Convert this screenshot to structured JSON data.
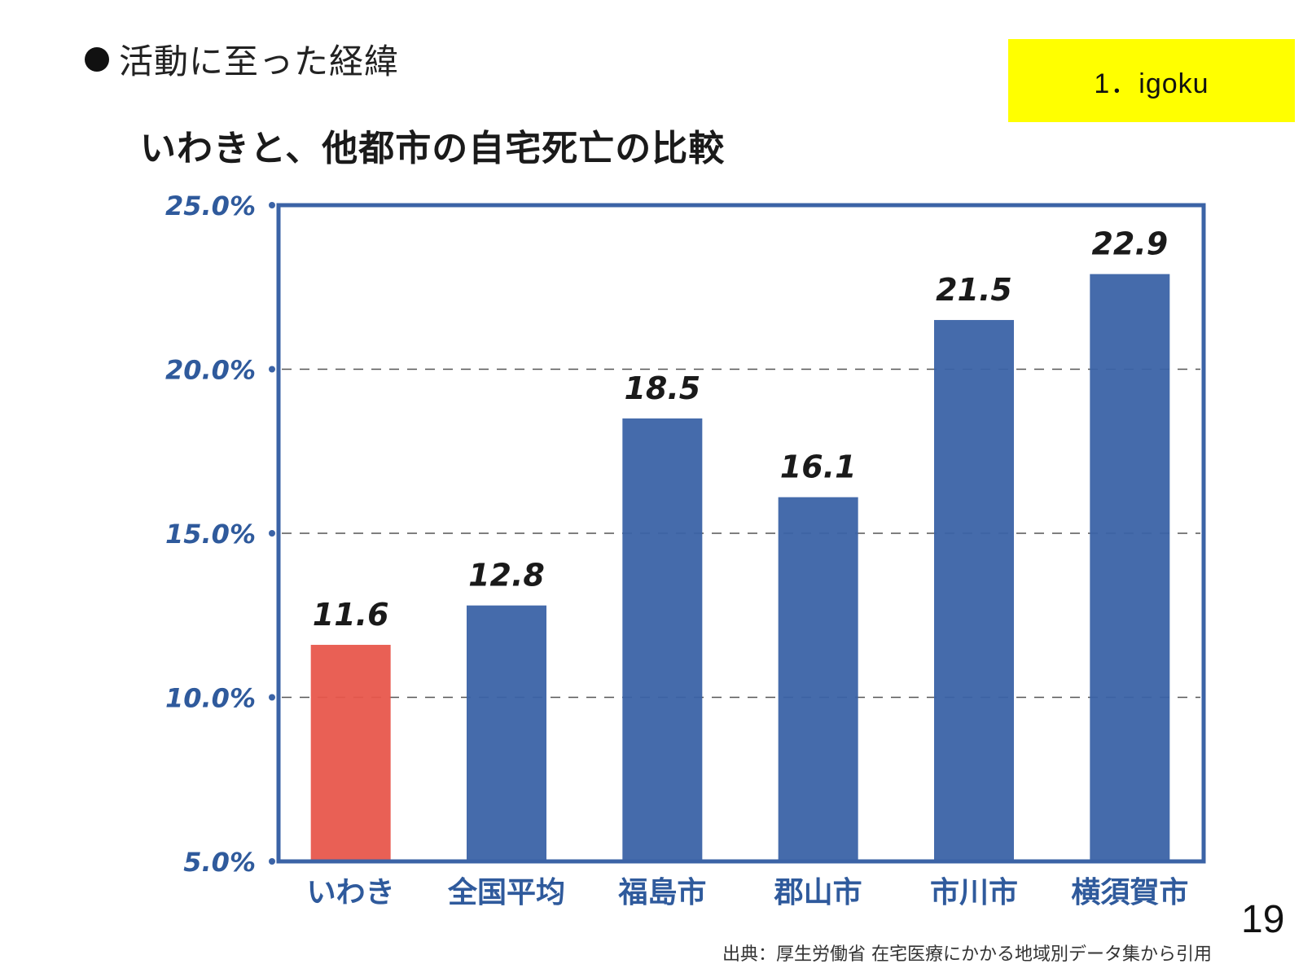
{
  "slide": {
    "section_heading": "活動に至った経緯",
    "tag": "1．igoku",
    "page_number": "19",
    "source": "出典：厚生労働省 在宅医療にかかる地域別データ集から引用"
  },
  "colors": {
    "bar": "#3b63a6",
    "highlight": "#e8574c",
    "axis": "#3b63a6",
    "tick_text": "#2f5a9c",
    "tag_bg": "#ffff00"
  },
  "chart_data": {
    "type": "bar",
    "title": "いわきと、他都市の自宅死亡の比較",
    "xlabel": "",
    "ylabel": "",
    "categories": [
      "いわき",
      "全国平均",
      "福島市",
      "郡山市",
      "市川市",
      "横須賀市"
    ],
    "values": [
      11.6,
      12.8,
      18.5,
      16.1,
      21.5,
      22.9
    ],
    "value_labels": [
      "11.6",
      "12.8",
      "18.5",
      "16.1",
      "21.5",
      "22.9"
    ],
    "highlight_index": 0,
    "ylim": [
      5.0,
      25.0
    ],
    "yticks": [
      5.0,
      10.0,
      15.0,
      20.0,
      25.0
    ],
    "ytick_labels": [
      "5.0%",
      "10.0%",
      "15.0%",
      "20.0%",
      "25.0%"
    ],
    "dashed_gridlines": [
      10.0,
      15.0,
      20.0
    ],
    "grid": true,
    "legend": "none"
  }
}
